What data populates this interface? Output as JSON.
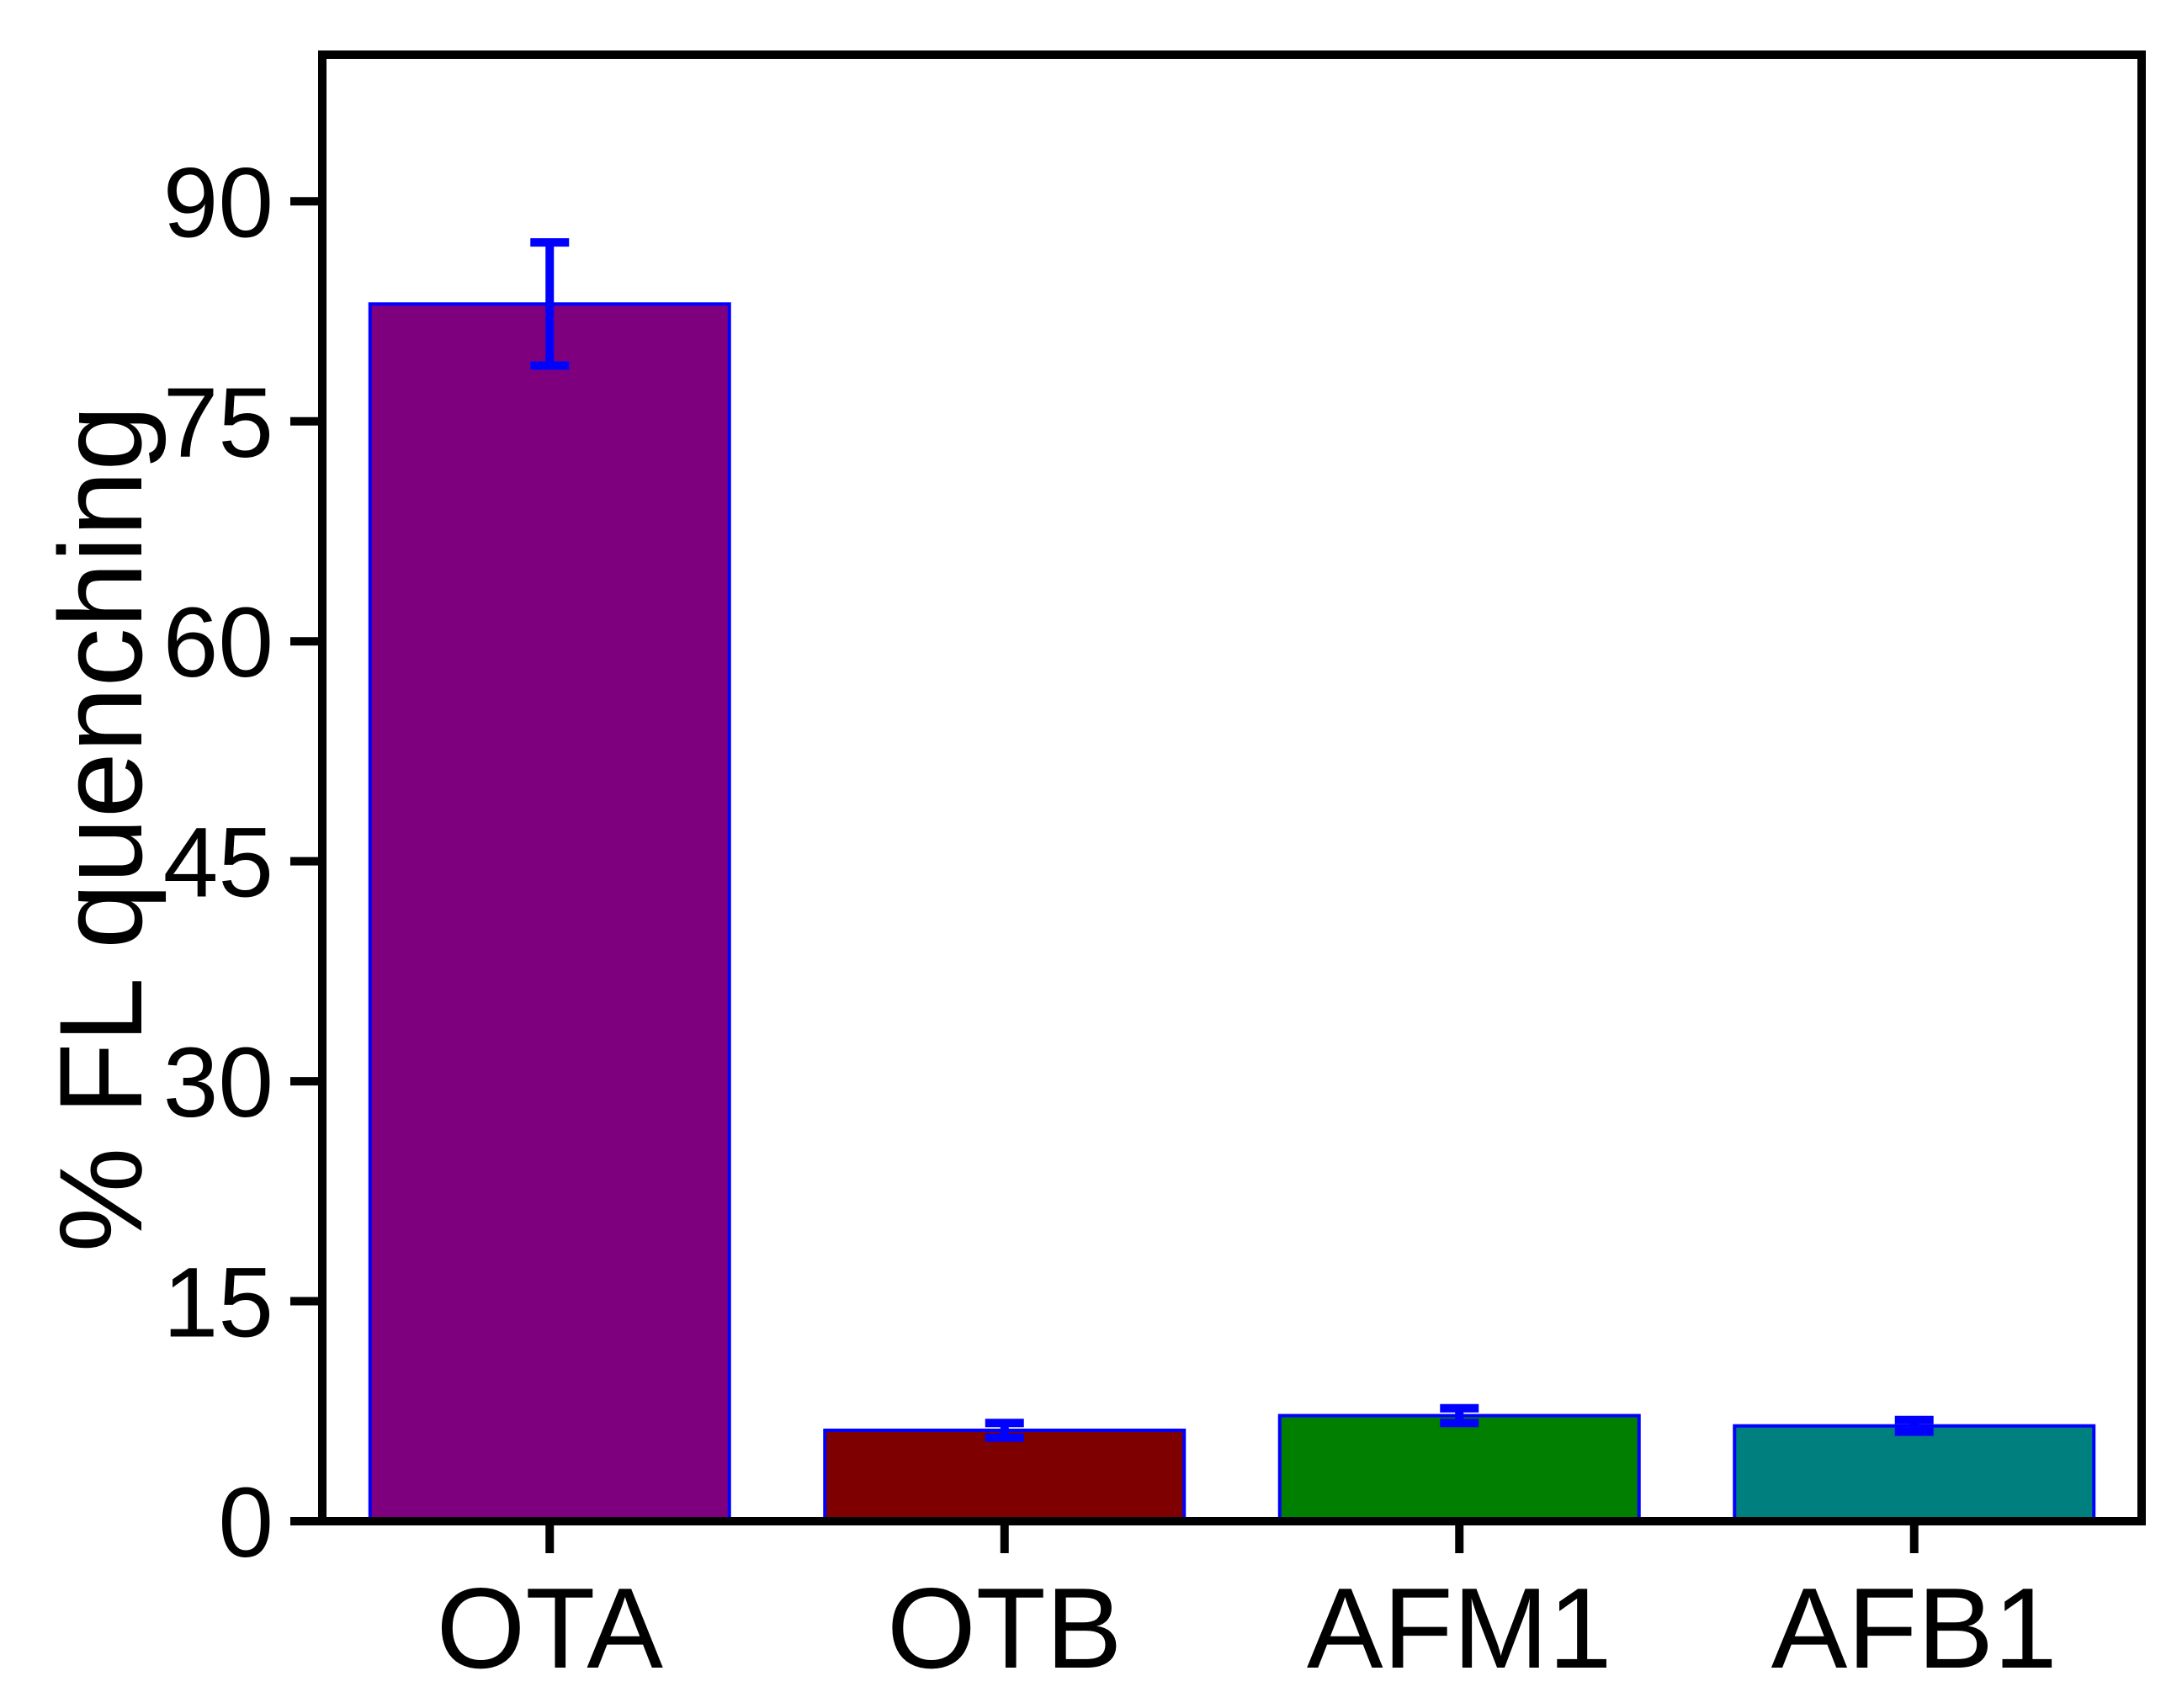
{
  "chart_data": {
    "type": "bar",
    "title": "",
    "xlabel": "",
    "ylabel": "% FL quenching",
    "ylim": [
      0,
      100
    ],
    "yticks": [
      0,
      15,
      30,
      45,
      60,
      75,
      90
    ],
    "categories": [
      "OTA",
      "OTB",
      "AFM1",
      "AFB1"
    ],
    "values": [
      83.0,
      6.2,
      7.2,
      6.5
    ],
    "errors": [
      4.2,
      0.5,
      0.5,
      0.4
    ],
    "bar_colors": [
      "#7f007f",
      "#7f0000",
      "#007f00",
      "#007f7f"
    ],
    "bar_edge_color": "#0000ff",
    "error_bar_color": "#0000ff",
    "axis_color": "#000000",
    "grid": false,
    "legend": "none"
  }
}
